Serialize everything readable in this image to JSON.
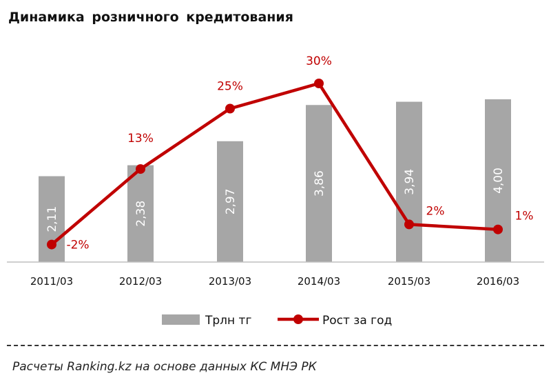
{
  "chart_data": {
    "type": "bar",
    "title": "Динамика  розничного кредитования",
    "categories": [
      "2011/03",
      "2012/03",
      "2013/03",
      "2014/03",
      "2015/03",
      "2016/03"
    ],
    "series": [
      {
        "name": "Трлн тг",
        "type": "bar",
        "color": "#a6a6a6",
        "values": [
          2.11,
          2.38,
          2.97,
          3.86,
          3.94,
          4.0
        ],
        "labels": [
          "2,11",
          "2,38",
          "2,97",
          "3,86",
          "3,94",
          "4,00"
        ]
      },
      {
        "name": "Рост за год",
        "type": "line",
        "color": "#c00000",
        "values": [
          -2,
          13,
          25,
          30,
          2,
          1
        ],
        "labels": [
          "-2%",
          "13%",
          "25%",
          "30%",
          "2%",
          "1%"
        ]
      }
    ],
    "legend": "bottom",
    "grid": false
  },
  "source": "Расчеты Ranking.kz на основе данных  КС МНЭ РК"
}
